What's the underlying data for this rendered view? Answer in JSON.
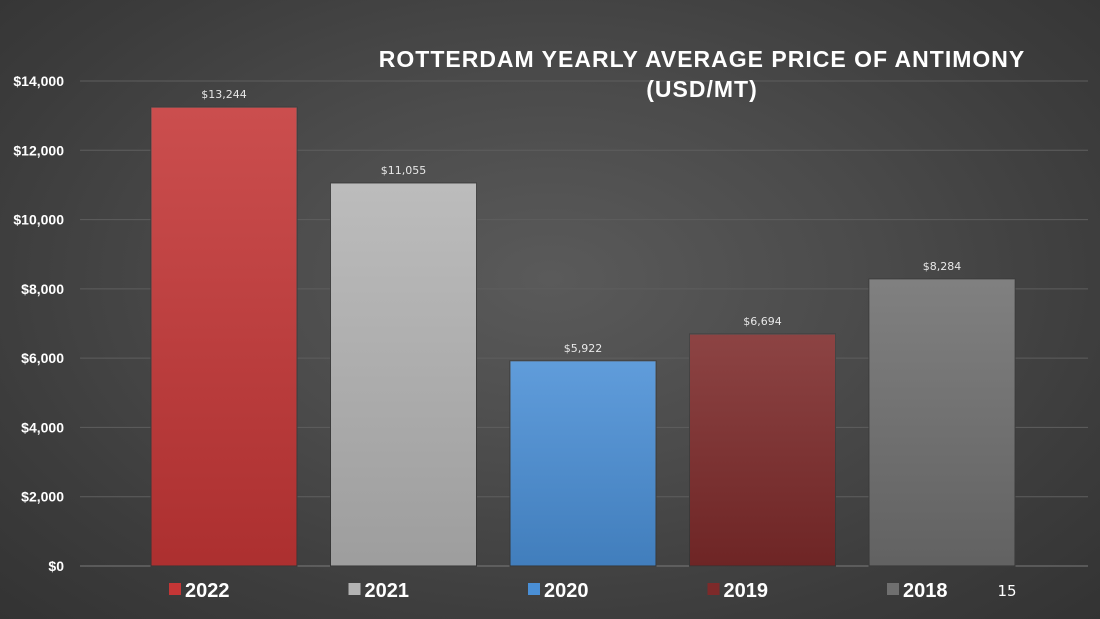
{
  "chart_data": {
    "type": "bar",
    "title_lines": [
      "ROTTERDAM YEARLY AVERAGE PRICE OF ANTIMONY",
      "(USD/MT)"
    ],
    "categories": [
      "2022",
      "2021",
      "2020",
      "2019",
      "2018"
    ],
    "values": [
      13244,
      11055,
      5922,
      6694,
      8284
    ],
    "data_labels": [
      "$13,244",
      "$11,055",
      "$5,922",
      "$6,694",
      "$8,284"
    ],
    "colors": [
      "#c43636",
      "#b3b3b3",
      "#4a8fd6",
      "#7d2a2a",
      "#6f6f6f"
    ],
    "ylim": [
      0,
      14000
    ],
    "yticks": [
      0,
      2000,
      4000,
      6000,
      8000,
      10000,
      12000,
      14000
    ],
    "ytick_labels": [
      "$0",
      "$2,000",
      "$4,000",
      "$6,000",
      "$8,000",
      "$10,000",
      "$12,000",
      "$14,000"
    ],
    "legend": [
      "2022",
      "2021",
      "2020",
      "2019",
      "2018"
    ],
    "legend_position": "bottom",
    "grid": true
  },
  "page_number": "15"
}
